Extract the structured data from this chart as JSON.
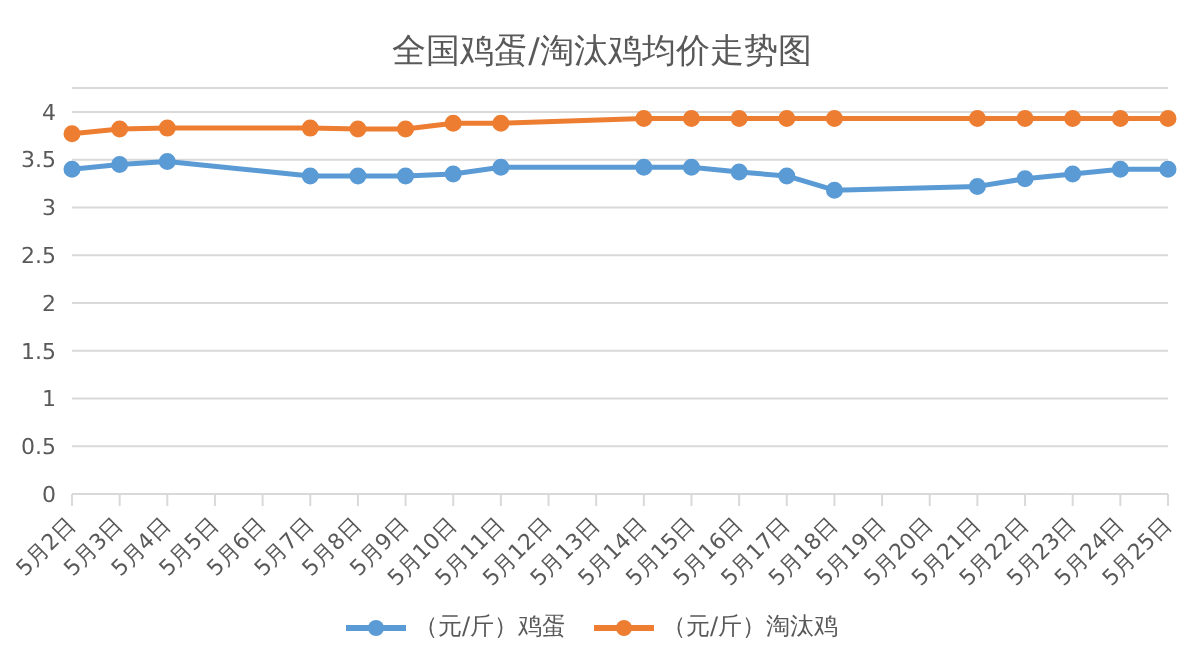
{
  "chart_data": {
    "type": "line",
    "title": "全国鸡蛋/淘汰鸡均价走势图",
    "categories": [
      "5月2日",
      "5月3日",
      "5月4日",
      "5月5日",
      "5月6日",
      "5月7日",
      "5月8日",
      "5月9日",
      "5月10日",
      "5月11日",
      "5月12日",
      "5月13日",
      "5月14日",
      "5月15日",
      "5月16日",
      "5月17日",
      "5月18日",
      "5月19日",
      "5月20日",
      "5月21日",
      "5月22日",
      "5月23日",
      "5月24日",
      "5月25日"
    ],
    "series": [
      {
        "name": "（元/斤）鸡蛋",
        "color": "#5b9bd5",
        "values": [
          3.4,
          3.45,
          3.48,
          null,
          null,
          3.33,
          3.33,
          3.33,
          3.35,
          3.42,
          null,
          null,
          3.42,
          3.42,
          3.37,
          3.33,
          3.18,
          null,
          null,
          3.22,
          3.3,
          3.35,
          3.4,
          3.4
        ]
      },
      {
        "name": "（元/斤）淘汰鸡",
        "color": "#ed7d31",
        "values": [
          3.77,
          3.82,
          3.83,
          null,
          null,
          3.83,
          3.82,
          3.82,
          3.88,
          3.88,
          null,
          null,
          3.93,
          3.93,
          3.93,
          3.93,
          3.93,
          null,
          null,
          3.93,
          3.93,
          3.93,
          3.93,
          3.93
        ]
      }
    ],
    "ylim": [
      0,
      4.25
    ],
    "yticks": [
      0,
      0.5,
      1,
      1.5,
      2,
      2.5,
      3,
      3.5,
      4
    ],
    "grid": "y",
    "legend": "bottom",
    "marker": "circle",
    "line_style": "solid"
  }
}
